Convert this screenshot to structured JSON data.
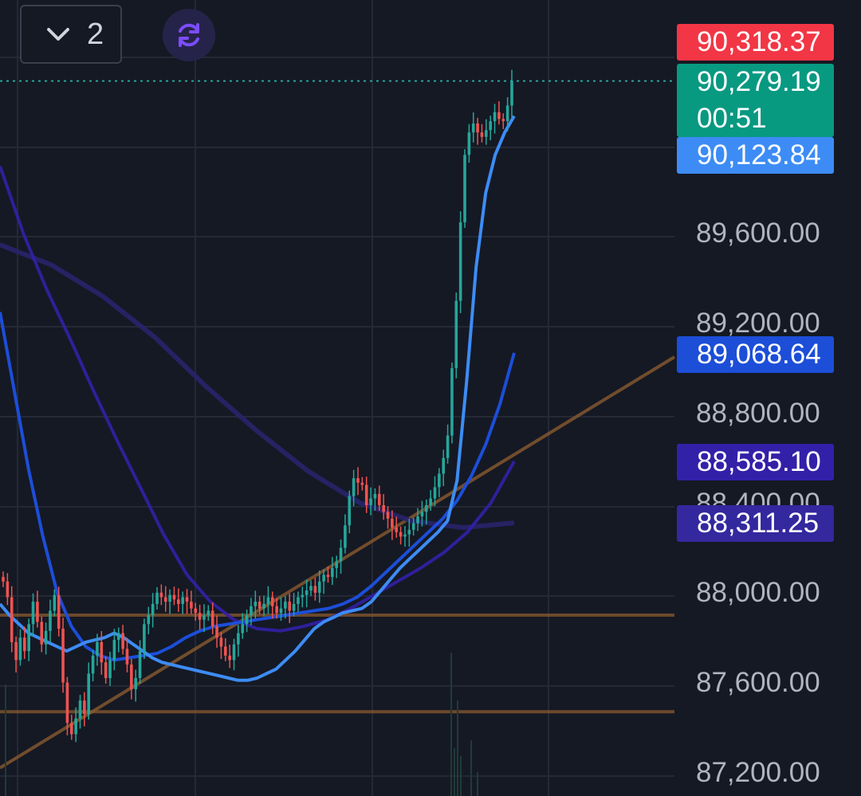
{
  "toolbar": {
    "interval_count": "2"
  },
  "price_tags": {
    "ask": "90,318.37",
    "last": "90,279.19",
    "countdown": "00:51",
    "ma_fast": "90,123.84",
    "ma_mid": "89,068.64",
    "ma_slow": "88,585.10",
    "ma_long": "88,311.25"
  },
  "colors": {
    "background": "#151924",
    "up": "#26a69a",
    "down": "#ef5350",
    "ask_tag": "#f23645",
    "last_tag": "#089981",
    "ma_fast": "#3d8cf5",
    "ma_mid": "#1c4ed8",
    "ma_slow": "#3320a8",
    "ma_long": "#28246b",
    "trendline": "#8a5a2e"
  },
  "chart_data": {
    "type": "candlestick",
    "y_axis": {
      "ticks": [
        "89,600.00",
        "89,200.00",
        "88,800.00",
        "88,400.00",
        "88,000.00",
        "87,600.00",
        "87,200.00"
      ],
      "range": [
        87100,
        90600
      ]
    },
    "horizontal_levels": [
      87900,
      87470
    ],
    "trendline": {
      "from": 87220,
      "to": 89050
    },
    "last_price_line": 90279.19,
    "series_close": [
      88050,
      87980,
      87780,
      87700,
      87800,
      87740,
      87860,
      87960,
      87870,
      87770,
      87830,
      87920,
      87990,
      87840,
      87600,
      87420,
      87370,
      87440,
      87520,
      87460,
      87640,
      87720,
      87780,
      87690,
      87620,
      87700,
      87790,
      87820,
      87750,
      87680,
      87570,
      87620,
      87740,
      87860,
      87900,
      87950,
      88000,
      87980,
      87960,
      87990,
      87970,
      87950,
      87980,
      87960,
      87930,
      87910,
      87880,
      87900,
      87920,
      87850,
      87800,
      87760,
      87720,
      87700,
      87770,
      87820,
      87860,
      87900,
      87940,
      87960,
      87930,
      87950,
      87980,
      87940,
      87910,
      87930,
      87960,
      87920,
      87950,
      87980,
      87990,
      88010,
      88030,
      88000,
      88050,
      88080,
      88070,
      88110,
      88140,
      88200,
      88300,
      88430,
      88510,
      88490,
      88480,
      88390,
      88420,
      88440,
      88390,
      88360,
      88330,
      88290,
      88270,
      88250,
      88260,
      88280,
      88310,
      88340,
      88360,
      88390,
      88420,
      88470,
      88530,
      88600,
      88700,
      89000,
      89300,
      89650,
      89950,
      90050,
      90090,
      90050,
      90030,
      90060,
      90100,
      90140,
      90110,
      90100,
      90170,
      90280
    ],
    "ma_fast": [
      87950,
      87900,
      87860,
      87820,
      87800,
      87780,
      87760,
      87740,
      87760,
      87780,
      87790,
      87800,
      87820,
      87800,
      87770,
      87740,
      87710,
      87690,
      87680,
      87670,
      87660,
      87650,
      87640,
      87630,
      87620,
      87610,
      87610,
      87620,
      87640,
      87660,
      87700,
      87740,
      87790,
      87840,
      87870,
      87890,
      87910,
      87920,
      87930,
      87960,
      88010,
      88060,
      88110,
      88150,
      88190,
      88230,
      88270,
      88320,
      88500,
      88940,
      89450,
      89780,
      89950,
      90050,
      90123
    ],
    "ma_mid": [
      89250,
      88900,
      88550,
      88250,
      88000,
      87850,
      87760,
      87720,
      87700,
      87710,
      87720,
      87730,
      87760,
      87800,
      87830,
      87850,
      87860,
      87870,
      87880,
      87890,
      87900,
      87910,
      87920,
      87930,
      87950,
      87980,
      88030,
      88090,
      88150,
      88210,
      88270,
      88330,
      88410,
      88520,
      88660,
      88840,
      89068
    ],
    "ma_slow": [
      89900,
      89600,
      89350,
      89130,
      88900,
      88680,
      88470,
      88260,
      88080,
      87960,
      87880,
      87840,
      87830,
      87850,
      87880,
      87930,
      87990,
      88050,
      88110,
      88180,
      88270,
      88400,
      88585
    ],
    "ma_long": [
      89550,
      89460,
      89320,
      89140,
      88920,
      88720,
      88540,
      88400,
      88320,
      88290,
      88311
    ]
  }
}
